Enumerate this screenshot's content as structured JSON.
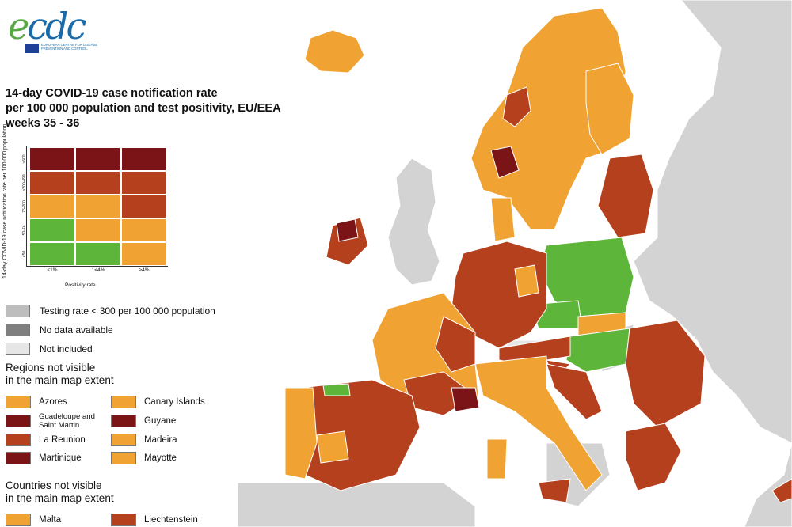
{
  "logo": {
    "wordmark_e": "e",
    "wordmark_rest": "cdc",
    "subtitle": "EUROPEAN CENTRE FOR DISEASE PREVENTION AND CONTROL"
  },
  "title_lines": [
    "14-day COVID-19 case notification rate",
    "per 100 000 population and test positivity, EU/EEA",
    "weeks 35 - 36"
  ],
  "matrix": {
    "y_label": "14-day COVID-19 case notification rate per 100 000 population",
    "x_label": "Positivity rate",
    "rows": [
      "≥500",
      ">200-499",
      "75-200",
      "50-74",
      "<50"
    ],
    "cols": [
      "<1%",
      "1<4%",
      "≥4%"
    ],
    "colors": [
      [
        "#7a1417",
        "#7a1417",
        "#7a1417"
      ],
      [
        "#b5401e",
        "#b5401e",
        "#b5401e"
      ],
      [
        "#f0a332",
        "#f0a332",
        "#b5401e"
      ],
      [
        "#5db53a",
        "#f0a332",
        "#f0a332"
      ],
      [
        "#5db53a",
        "#5db53a",
        "#f0a332"
      ]
    ]
  },
  "legend": [
    {
      "label": "Testing rate < 300 per 100 000 population",
      "color": "#bdbdbd"
    },
    {
      "label": "No data available",
      "color": "#7f7f7f"
    },
    {
      "label": "Not included",
      "color": "#e6e6e6"
    }
  ],
  "regions_heading": [
    "Regions not visible",
    "in the main map extent"
  ],
  "regions": [
    {
      "label": "Azores",
      "color": "#f0a332"
    },
    {
      "label": "Canary Islands",
      "color": "#f0a332"
    },
    {
      "label": "Guadeloupe and Saint Martin",
      "color": "#7a1417"
    },
    {
      "label": "Guyane",
      "color": "#7a1417"
    },
    {
      "label": "La Reunion",
      "color": "#b5401e"
    },
    {
      "label": "Madeira",
      "color": "#f0a332"
    },
    {
      "label": "Martinique",
      "color": "#7a1417"
    },
    {
      "label": "Mayotte",
      "color": "#f0a332"
    }
  ],
  "countries_heading": [
    "Countries not visible",
    "in the main map extent"
  ],
  "countries": [
    {
      "label": "Malta",
      "color": "#f0a332"
    },
    {
      "label": "Liechtenstein",
      "color": "#b5401e"
    }
  ],
  "map_colors": {
    "sea": "#ffffff",
    "not_included": "#d3d3d3",
    "green": "#5db53a",
    "orange": "#f0a332",
    "red": "#b5401e",
    "dark_red": "#7a1417"
  }
}
